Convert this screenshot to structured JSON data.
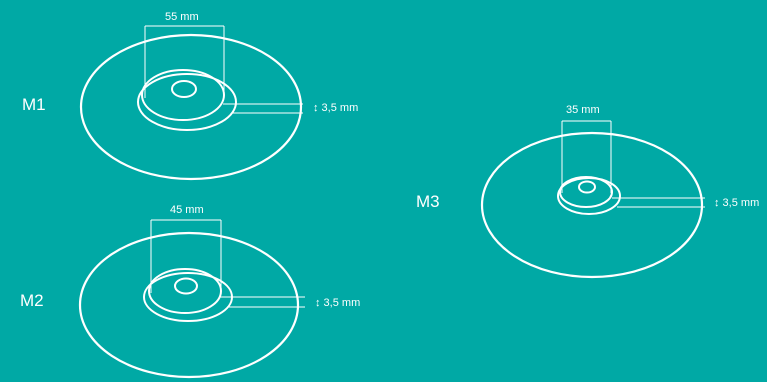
{
  "diagram": {
    "background_color": "#00a9a5",
    "stroke_color": "#ffffff",
    "models": [
      {
        "name": "M1",
        "diameter": "55 mm",
        "thickness": "↕ 3,5 mm"
      },
      {
        "name": "M2",
        "diameter": "45 mm",
        "thickness": "↕ 3,5 mm"
      },
      {
        "name": "M3",
        "diameter": "35 mm",
        "thickness": "↕ 3,5 mm"
      }
    ]
  }
}
